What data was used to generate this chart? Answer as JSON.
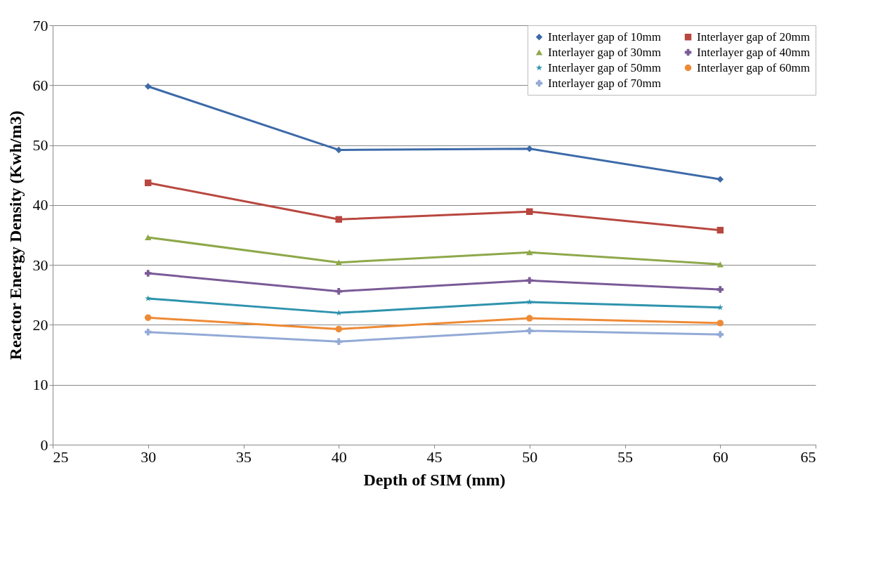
{
  "chart_data": {
    "type": "line",
    "xlabel": "Depth of SIM (mm)",
    "ylabel": "Reactor Energy Density (Kwh/m3)",
    "x": [
      30,
      40,
      50,
      60
    ],
    "xlim": [
      25,
      65
    ],
    "xticks": [
      25,
      30,
      35,
      40,
      45,
      50,
      55,
      60,
      65
    ],
    "ylim": [
      0,
      70
    ],
    "yticks": [
      0,
      10,
      20,
      30,
      40,
      50,
      60,
      70
    ],
    "grid": "y",
    "legend": "top right",
    "line_style": "solid",
    "series": [
      {
        "name": "Interlayer gap of 10mm",
        "color": "#3c6aa8",
        "marker": "diamond",
        "values": [
          59.8,
          49.2,
          49.4,
          44.3
        ]
      },
      {
        "name": "Interlayer gap of 20mm",
        "color": "#b8473f",
        "marker": "square",
        "values": [
          43.7,
          37.6,
          38.9,
          35.8
        ]
      },
      {
        "name": "Interlayer gap of 30mm",
        "color": "#8ea84a",
        "marker": "triangle",
        "values": [
          34.6,
          30.4,
          32.1,
          30.1
        ]
      },
      {
        "name": "Interlayer gap of 40mm",
        "color": "#7a5a96",
        "marker": "cross",
        "values": [
          28.6,
          25.6,
          27.4,
          25.9
        ]
      },
      {
        "name": "Interlayer gap of 50mm",
        "color": "#2e93ad",
        "marker": "star",
        "values": [
          24.4,
          22.0,
          23.8,
          22.9
        ]
      },
      {
        "name": "Interlayer gap of 60mm",
        "color": "#ee8a35",
        "marker": "circle",
        "values": [
          21.2,
          19.3,
          21.1,
          20.3
        ]
      },
      {
        "name": "Interlayer gap of 70mm",
        "color": "#93aad6",
        "marker": "cross",
        "values": [
          18.8,
          17.2,
          19.0,
          18.4
        ]
      }
    ]
  }
}
